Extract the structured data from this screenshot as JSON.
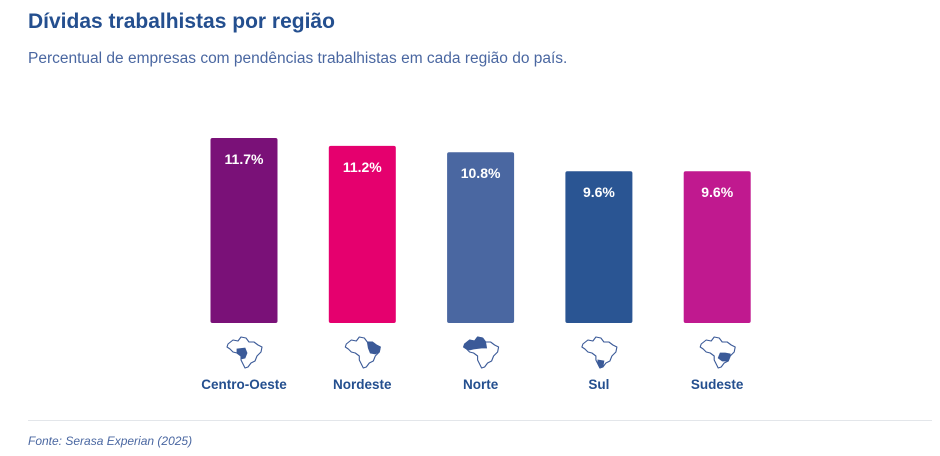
{
  "title": "Dívidas trabalhistas por região",
  "subtitle": "Percentual de empresas com pendências trabalhistas em cada região do país.",
  "source": "Fonte: Serasa Experian (2025)",
  "chart_data": {
    "type": "bar",
    "categories": [
      "Centro-Oeste",
      "Nordeste",
      "Norte",
      "Sul",
      "Sudeste"
    ],
    "values": [
      11.7,
      11.2,
      10.8,
      9.6,
      9.6
    ],
    "data_labels": [
      "11.7%",
      "11.2%",
      "10.8%",
      "9.6%",
      "9.6%"
    ],
    "colors": [
      "#7a1178",
      "#e5006e",
      "#4a67a1",
      "#2a5593",
      "#c0198f"
    ],
    "icons": [
      "brazil-map-centro-oeste-icon",
      "brazil-map-nordeste-icon",
      "brazil-map-norte-icon",
      "brazil-map-sul-icon",
      "brazil-map-sudeste-icon"
    ],
    "ylim": [
      0,
      11.7
    ],
    "grid": false,
    "legend": "none",
    "label_color": "#244f8f"
  }
}
